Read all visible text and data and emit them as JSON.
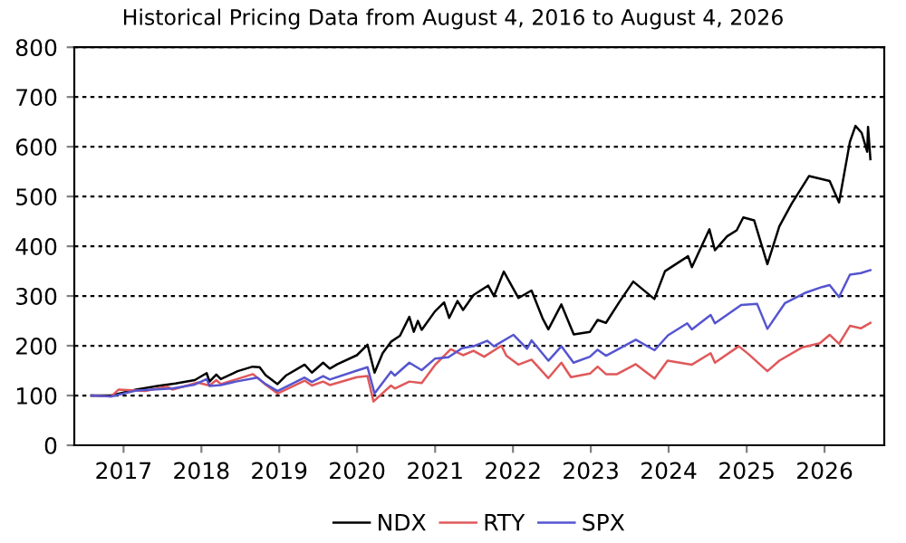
{
  "chart_data": {
    "type": "line",
    "title": "Historical Pricing Data from August 4, 2016 to August 4, 2026",
    "xlim": [
      "2016-05-15",
      "2026-10-08"
    ],
    "xticks": [
      {
        "value": "2017-01-01",
        "label": "2017"
      },
      {
        "value": "2018-01-01",
        "label": "2018"
      },
      {
        "value": "2019-01-01",
        "label": "2019"
      },
      {
        "value": "2020-01-01",
        "label": "2020"
      },
      {
        "value": "2021-01-01",
        "label": "2021"
      },
      {
        "value": "2022-01-01",
        "label": "2022"
      },
      {
        "value": "2023-01-01",
        "label": "2023"
      },
      {
        "value": "2024-01-01",
        "label": "2024"
      },
      {
        "value": "2025-01-01",
        "label": "2025"
      },
      {
        "value": "2026-01-01",
        "label": "2026"
      }
    ],
    "ylim": [
      0,
      800
    ],
    "yticks": [
      0,
      100,
      200,
      300,
      400,
      500,
      600,
      700,
      800
    ],
    "grid": "y",
    "legend": "bottom",
    "line_style": "solid",
    "marker": "none",
    "series": [
      {
        "name": "NDX",
        "color": "#000000",
        "x": [
          "2016-08-04",
          "2016-11-04",
          "2017-03-01",
          "2017-06-09",
          "2017-09-01",
          "2017-12-01",
          "2018-01-26",
          "2018-02-08",
          "2018-03-12",
          "2018-04-02",
          "2018-06-20",
          "2018-08-29",
          "2018-10-01",
          "2018-10-29",
          "2018-12-24",
          "2019-02-01",
          "2019-04-30",
          "2019-06-03",
          "2019-07-26",
          "2019-08-26",
          "2019-10-01",
          "2019-12-31",
          "2020-02-19",
          "2020-03-23",
          "2020-04-30",
          "2020-06-08",
          "2020-07-20",
          "2020-09-02",
          "2020-09-23",
          "2020-10-12",
          "2020-10-30",
          "2020-12-31",
          "2021-02-12",
          "2021-03-08",
          "2021-04-16",
          "2021-05-12",
          "2021-06-30",
          "2021-09-07",
          "2021-10-04",
          "2021-11-19",
          "2022-01-27",
          "2022-03-29",
          "2022-05-20",
          "2022-06-16",
          "2022-08-16",
          "2022-10-13",
          "2022-12-28",
          "2023-02-02",
          "2023-03-13",
          "2023-05-15",
          "2023-07-19",
          "2023-10-26",
          "2023-12-15",
          "2024-04-01",
          "2024-04-19",
          "2024-07-10",
          "2024-08-05",
          "2024-10-01",
          "2024-11-15",
          "2024-12-16",
          "2025-02-05",
          "2025-04-08",
          "2025-06-03",
          "2025-07-30",
          "2025-10-20",
          "2026-01-25",
          "2026-03-10",
          "2026-04-30",
          "2026-05-26",
          "2026-06-24",
          "2026-07-20",
          "2026-07-24",
          "2026-08-04"
        ],
        "values": [
          100,
          100,
          112,
          119,
          124,
          131,
          145,
          128,
          142,
          133,
          149,
          158,
          157,
          141,
          123,
          140,
          162,
          146,
          166,
          154,
          163,
          181,
          202,
          146,
          185,
          208,
          220,
          258,
          228,
          250,
          232,
          269,
          287,
          256,
          290,
          272,
          302,
          321,
          300,
          349,
          296,
          311,
          255,
          233,
          283,
          223,
          228,
          252,
          246,
          288,
          329,
          294,
          350,
          380,
          358,
          434,
          392,
          420,
          432,
          458,
          452,
          364,
          440,
          485,
          541,
          531,
          488,
          610,
          642,
          628,
          590,
          640,
          575
        ]
      },
      {
        "name": "RTY",
        "color": "#e0585a",
        "x": [
          "2016-08-04",
          "2016-11-04",
          "2016-12-09",
          "2017-04-13",
          "2017-07-25",
          "2017-08-18",
          "2017-12-15",
          "2018-02-08",
          "2018-03-12",
          "2018-04-02",
          "2018-08-31",
          "2018-10-29",
          "2018-12-24",
          "2019-04-30",
          "2019-06-03",
          "2019-07-26",
          "2019-08-26",
          "2019-12-31",
          "2020-02-19",
          "2020-03-18",
          "2020-06-08",
          "2020-06-26",
          "2020-09-02",
          "2020-10-30",
          "2020-12-31",
          "2021-03-15",
          "2021-05-12",
          "2021-06-30",
          "2021-08-19",
          "2021-11-08",
          "2021-12-01",
          "2022-01-27",
          "2022-03-29",
          "2022-06-16",
          "2022-08-16",
          "2022-09-30",
          "2022-12-28",
          "2023-02-02",
          "2023-03-13",
          "2023-05-04",
          "2023-07-31",
          "2023-10-27",
          "2023-12-27",
          "2024-04-19",
          "2024-07-16",
          "2024-08-05",
          "2024-11-25",
          "2025-01-10",
          "2025-04-08",
          "2025-06-03",
          "2025-09-20",
          "2025-12-10",
          "2026-01-25",
          "2026-03-10",
          "2026-04-30",
          "2026-06-20",
          "2026-08-04"
        ],
        "values": [
          100,
          98,
          112,
          109,
          118,
          112,
          126,
          120,
          131,
          123,
          143,
          122,
          104,
          130,
          120,
          128,
          121,
          137,
          139,
          88,
          120,
          114,
          128,
          125,
          161,
          193,
          181,
          190,
          178,
          200,
          180,
          162,
          172,
          135,
          166,
          137,
          144,
          158,
          143,
          143,
          163,
          134,
          170,
          162,
          185,
          166,
          199,
          183,
          149,
          170,
          197,
          205,
          222,
          204,
          240,
          235,
          246
        ]
      },
      {
        "name": "SPX",
        "color": "#5555d0",
        "x": [
          "2016-08-04",
          "2016-11-04",
          "2017-03-01",
          "2017-08-18",
          "2017-12-01",
          "2018-01-26",
          "2018-02-08",
          "2018-04-02",
          "2018-06-12",
          "2018-09-20",
          "2018-10-29",
          "2018-12-24",
          "2019-04-30",
          "2019-06-03",
          "2019-07-26",
          "2019-08-26",
          "2019-12-31",
          "2020-02-19",
          "2020-03-23",
          "2020-06-08",
          "2020-06-26",
          "2020-09-02",
          "2020-10-30",
          "2020-12-31",
          "2021-03-04",
          "2021-05-07",
          "2021-06-30",
          "2021-09-02",
          "2021-10-04",
          "2022-01-03",
          "2022-03-08",
          "2022-03-29",
          "2022-06-16",
          "2022-08-16",
          "2022-10-12",
          "2022-12-28",
          "2023-02-02",
          "2023-03-13",
          "2023-07-31",
          "2023-10-27",
          "2023-12-29",
          "2024-03-28",
          "2024-04-19",
          "2024-07-16",
          "2024-08-05",
          "2024-12-06",
          "2025-02-19",
          "2025-04-08",
          "2025-06-30",
          "2025-09-30",
          "2025-12-20",
          "2026-01-25",
          "2026-03-10",
          "2026-04-30",
          "2026-06-20",
          "2026-08-04"
        ],
        "values": [
          100,
          98,
          110,
          114,
          122,
          133,
          119,
          121,
          128,
          136,
          123,
          109,
          136,
          127,
          139,
          132,
          150,
          157,
          104,
          148,
          140,
          166,
          151,
          174,
          177,
          195,
          199,
          210,
          199,
          222,
          194,
          211,
          170,
          199,
          166,
          178,
          192,
          180,
          212,
          191,
          221,
          245,
          233,
          262,
          245,
          282,
          284,
          234,
          286,
          306,
          318,
          322,
          298,
          343,
          346,
          352
        ]
      }
    ]
  }
}
